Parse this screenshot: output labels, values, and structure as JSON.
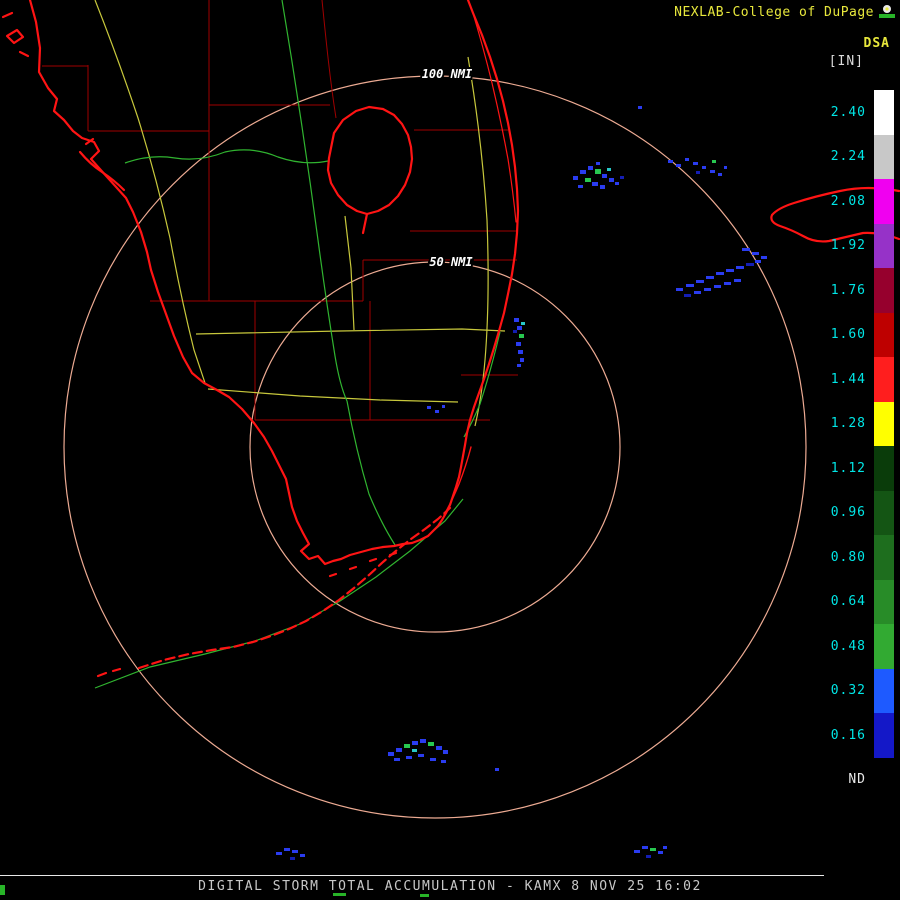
{
  "header": {
    "title": "NEXLAB-College of DuPage",
    "title_color": "#E8E83C",
    "product_code": "DSA",
    "units_label": "[IN]"
  },
  "scale": {
    "label_color": "#00E6E6",
    "nd_label_color": "#E8E8E8",
    "entries": [
      {
        "value": "2.40",
        "color": "#FFFFFF"
      },
      {
        "value": "2.24",
        "color": "#C8C8C8"
      },
      {
        "value": "2.08",
        "color": "#F000F0"
      },
      {
        "value": "1.92",
        "color": "#9632C8"
      },
      {
        "value": "1.76",
        "color": "#96002D"
      },
      {
        "value": "1.60",
        "color": "#BE0000"
      },
      {
        "value": "1.44",
        "color": "#FF1E1E"
      },
      {
        "value": "1.28",
        "color": "#FFFF00"
      },
      {
        "value": "1.12",
        "color": "#0A3C0A"
      },
      {
        "value": "0.96",
        "color": "#145514"
      },
      {
        "value": "0.80",
        "color": "#1E6E1E"
      },
      {
        "value": "0.64",
        "color": "#288C28"
      },
      {
        "value": "0.48",
        "color": "#32AA32"
      },
      {
        "value": "0.32",
        "color": "#1E5AFF"
      },
      {
        "value": "0.16",
        "color": "#1418C8"
      },
      {
        "value": "ND",
        "color": "#000000"
      }
    ]
  },
  "rings": {
    "outer_label": "100 NMI",
    "inner_label": "50 NMI"
  },
  "footer": {
    "caption": "DIGITAL STORM TOTAL ACCUMULATION - KAMX 8 NOV 25 16:02",
    "caption_color": "#C8C8C8"
  },
  "map": {
    "colors": {
      "coast": "#FF1414",
      "county": "#A00000",
      "road_yellow": "#C8C83C",
      "road_green": "#30B430",
      "ring": "#EDAB93"
    },
    "echo_palette": {
      "b": "#2A3CF0",
      "d": "#141EB4",
      "g": "#28C850",
      "c": "#28C8C8"
    },
    "echoes": [
      [
        573,
        176,
        5,
        4,
        "b"
      ],
      [
        580,
        170,
        6,
        4,
        "b"
      ],
      [
        588,
        166,
        5,
        4,
        "b"
      ],
      [
        595,
        169,
        6,
        5,
        "g"
      ],
      [
        602,
        174,
        5,
        4,
        "b"
      ],
      [
        609,
        178,
        5,
        4,
        "b"
      ],
      [
        585,
        178,
        6,
        4,
        "g"
      ],
      [
        592,
        182,
        6,
        4,
        "b"
      ],
      [
        600,
        185,
        5,
        4,
        "b"
      ],
      [
        578,
        185,
        5,
        3,
        "b"
      ],
      [
        607,
        168,
        4,
        3,
        "c"
      ],
      [
        615,
        182,
        4,
        3,
        "b"
      ],
      [
        596,
        162,
        4,
        3,
        "b"
      ],
      [
        620,
        176,
        4,
        3,
        "d"
      ],
      [
        668,
        160,
        5,
        3,
        "b"
      ],
      [
        676,
        164,
        5,
        3,
        "b"
      ],
      [
        685,
        158,
        4,
        3,
        "b"
      ],
      [
        693,
        162,
        5,
        3,
        "b"
      ],
      [
        702,
        166,
        4,
        3,
        "b"
      ],
      [
        710,
        170,
        5,
        3,
        "b"
      ],
      [
        718,
        173,
        4,
        3,
        "b"
      ],
      [
        696,
        171,
        4,
        3,
        "d"
      ],
      [
        712,
        160,
        4,
        3,
        "g"
      ],
      [
        724,
        166,
        3,
        3,
        "b"
      ],
      [
        638,
        106,
        4,
        3,
        "b"
      ],
      [
        742,
        248,
        8,
        3,
        "b"
      ],
      [
        752,
        252,
        7,
        3,
        "b"
      ],
      [
        761,
        256,
        6,
        3,
        "b"
      ],
      [
        676,
        288,
        7,
        3,
        "b"
      ],
      [
        686,
        284,
        8,
        3,
        "b"
      ],
      [
        696,
        280,
        8,
        3,
        "b"
      ],
      [
        706,
        276,
        8,
        3,
        "b"
      ],
      [
        716,
        272,
        8,
        3,
        "b"
      ],
      [
        726,
        269,
        8,
        3,
        "b"
      ],
      [
        736,
        266,
        8,
        3,
        "b"
      ],
      [
        746,
        263,
        8,
        3,
        "d"
      ],
      [
        684,
        294,
        7,
        3,
        "d"
      ],
      [
        694,
        291,
        7,
        3,
        "b"
      ],
      [
        704,
        288,
        7,
        3,
        "b"
      ],
      [
        714,
        285,
        7,
        3,
        "b"
      ],
      [
        724,
        282,
        7,
        3,
        "b"
      ],
      [
        734,
        279,
        7,
        3,
        "b"
      ],
      [
        755,
        260,
        6,
        3,
        "b"
      ],
      [
        514,
        318,
        5,
        4,
        "b"
      ],
      [
        517,
        326,
        5,
        4,
        "b"
      ],
      [
        519,
        334,
        5,
        4,
        "g"
      ],
      [
        516,
        342,
        5,
        4,
        "b"
      ],
      [
        518,
        350,
        5,
        4,
        "b"
      ],
      [
        520,
        358,
        4,
        4,
        "b"
      ],
      [
        513,
        330,
        4,
        3,
        "d"
      ],
      [
        521,
        322,
        4,
        3,
        "c"
      ],
      [
        517,
        364,
        4,
        3,
        "b"
      ],
      [
        427,
        406,
        4,
        3,
        "b"
      ],
      [
        435,
        410,
        4,
        3,
        "b"
      ],
      [
        442,
        405,
        3,
        3,
        "b"
      ],
      [
        388,
        752,
        6,
        4,
        "b"
      ],
      [
        396,
        748,
        6,
        4,
        "b"
      ],
      [
        404,
        744,
        6,
        4,
        "g"
      ],
      [
        412,
        741,
        6,
        4,
        "b"
      ],
      [
        420,
        739,
        6,
        4,
        "b"
      ],
      [
        428,
        742,
        6,
        4,
        "g"
      ],
      [
        436,
        746,
        6,
        4,
        "b"
      ],
      [
        443,
        750,
        5,
        4,
        "b"
      ],
      [
        394,
        758,
        6,
        3,
        "b"
      ],
      [
        406,
        756,
        6,
        3,
        "b"
      ],
      [
        418,
        754,
        6,
        3,
        "b"
      ],
      [
        430,
        758,
        6,
        3,
        "b"
      ],
      [
        441,
        760,
        5,
        3,
        "b"
      ],
      [
        412,
        749,
        5,
        3,
        "c"
      ],
      [
        495,
        768,
        4,
        3,
        "b"
      ],
      [
        276,
        852,
        6,
        3,
        "b"
      ],
      [
        284,
        848,
        6,
        3,
        "b"
      ],
      [
        292,
        850,
        6,
        3,
        "b"
      ],
      [
        300,
        854,
        5,
        3,
        "b"
      ],
      [
        290,
        857,
        5,
        3,
        "d"
      ],
      [
        634,
        850,
        6,
        3,
        "b"
      ],
      [
        642,
        846,
        6,
        3,
        "b"
      ],
      [
        650,
        848,
        6,
        3,
        "g"
      ],
      [
        658,
        851,
        5,
        3,
        "b"
      ],
      [
        646,
        855,
        5,
        3,
        "d"
      ],
      [
        663,
        846,
        4,
        3,
        "b"
      ]
    ]
  }
}
